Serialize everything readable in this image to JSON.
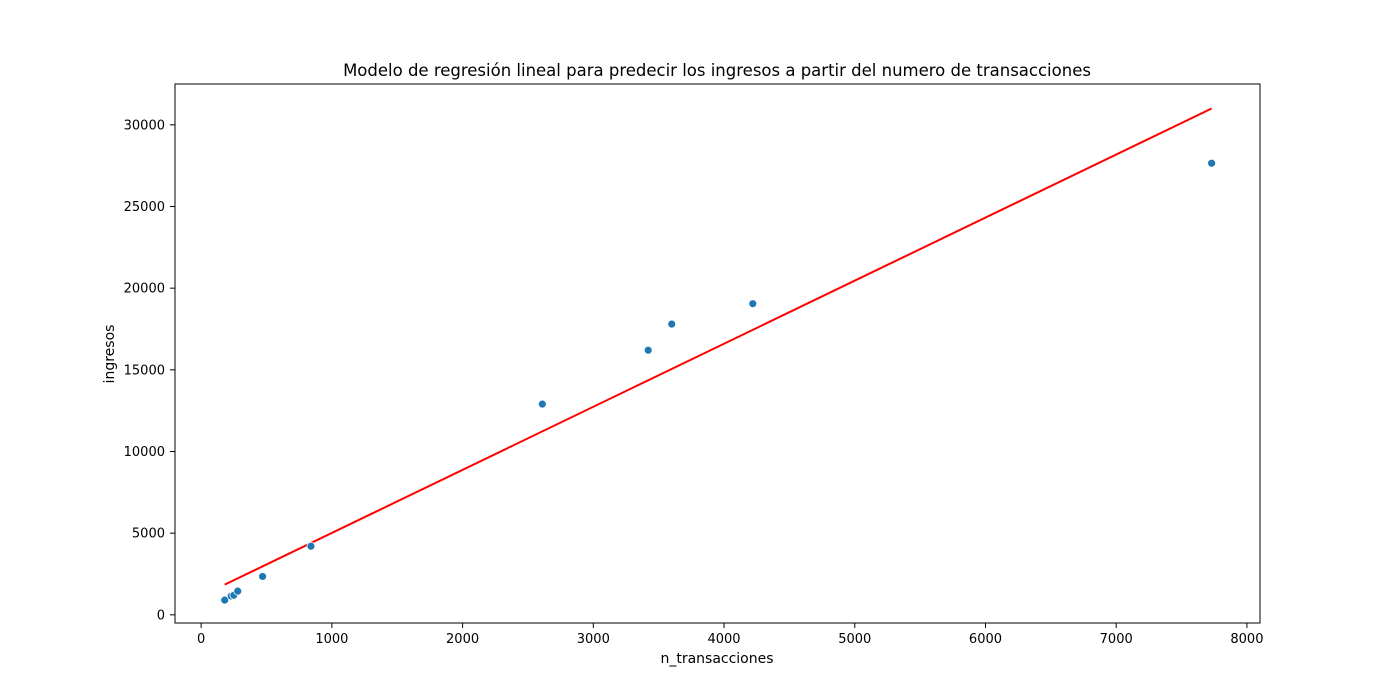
{
  "chart_data": {
    "type": "scatter",
    "title": "Modelo de regresión lineal para predecir los ingresos a partir del numero de transacciones",
    "xlabel": "n_transacciones",
    "ylabel": "ingresos",
    "xlim": [
      -200,
      8100
    ],
    "ylim": [
      -500,
      32500
    ],
    "xticks": [
      0,
      1000,
      2000,
      3000,
      4000,
      5000,
      6000,
      7000,
      8000
    ],
    "yticks": [
      0,
      5000,
      10000,
      15000,
      20000,
      25000,
      30000
    ],
    "grid": false,
    "series": [
      {
        "kind": "scatter",
        "color": "#1f77b4",
        "points": [
          {
            "x": 180,
            "y": 900
          },
          {
            "x": 230,
            "y": 1150
          },
          {
            "x": 250,
            "y": 1200
          },
          {
            "x": 280,
            "y": 1450
          },
          {
            "x": 470,
            "y": 2350
          },
          {
            "x": 840,
            "y": 4200
          },
          {
            "x": 2610,
            "y": 12900
          },
          {
            "x": 3420,
            "y": 16200
          },
          {
            "x": 3600,
            "y": 17800
          },
          {
            "x": 4220,
            "y": 19050
          },
          {
            "x": 7730,
            "y": 27650
          }
        ]
      },
      {
        "kind": "line",
        "color": "#ff0000",
        "x": [
          180,
          7730
        ],
        "y": [
          1850,
          31000
        ]
      }
    ]
  }
}
